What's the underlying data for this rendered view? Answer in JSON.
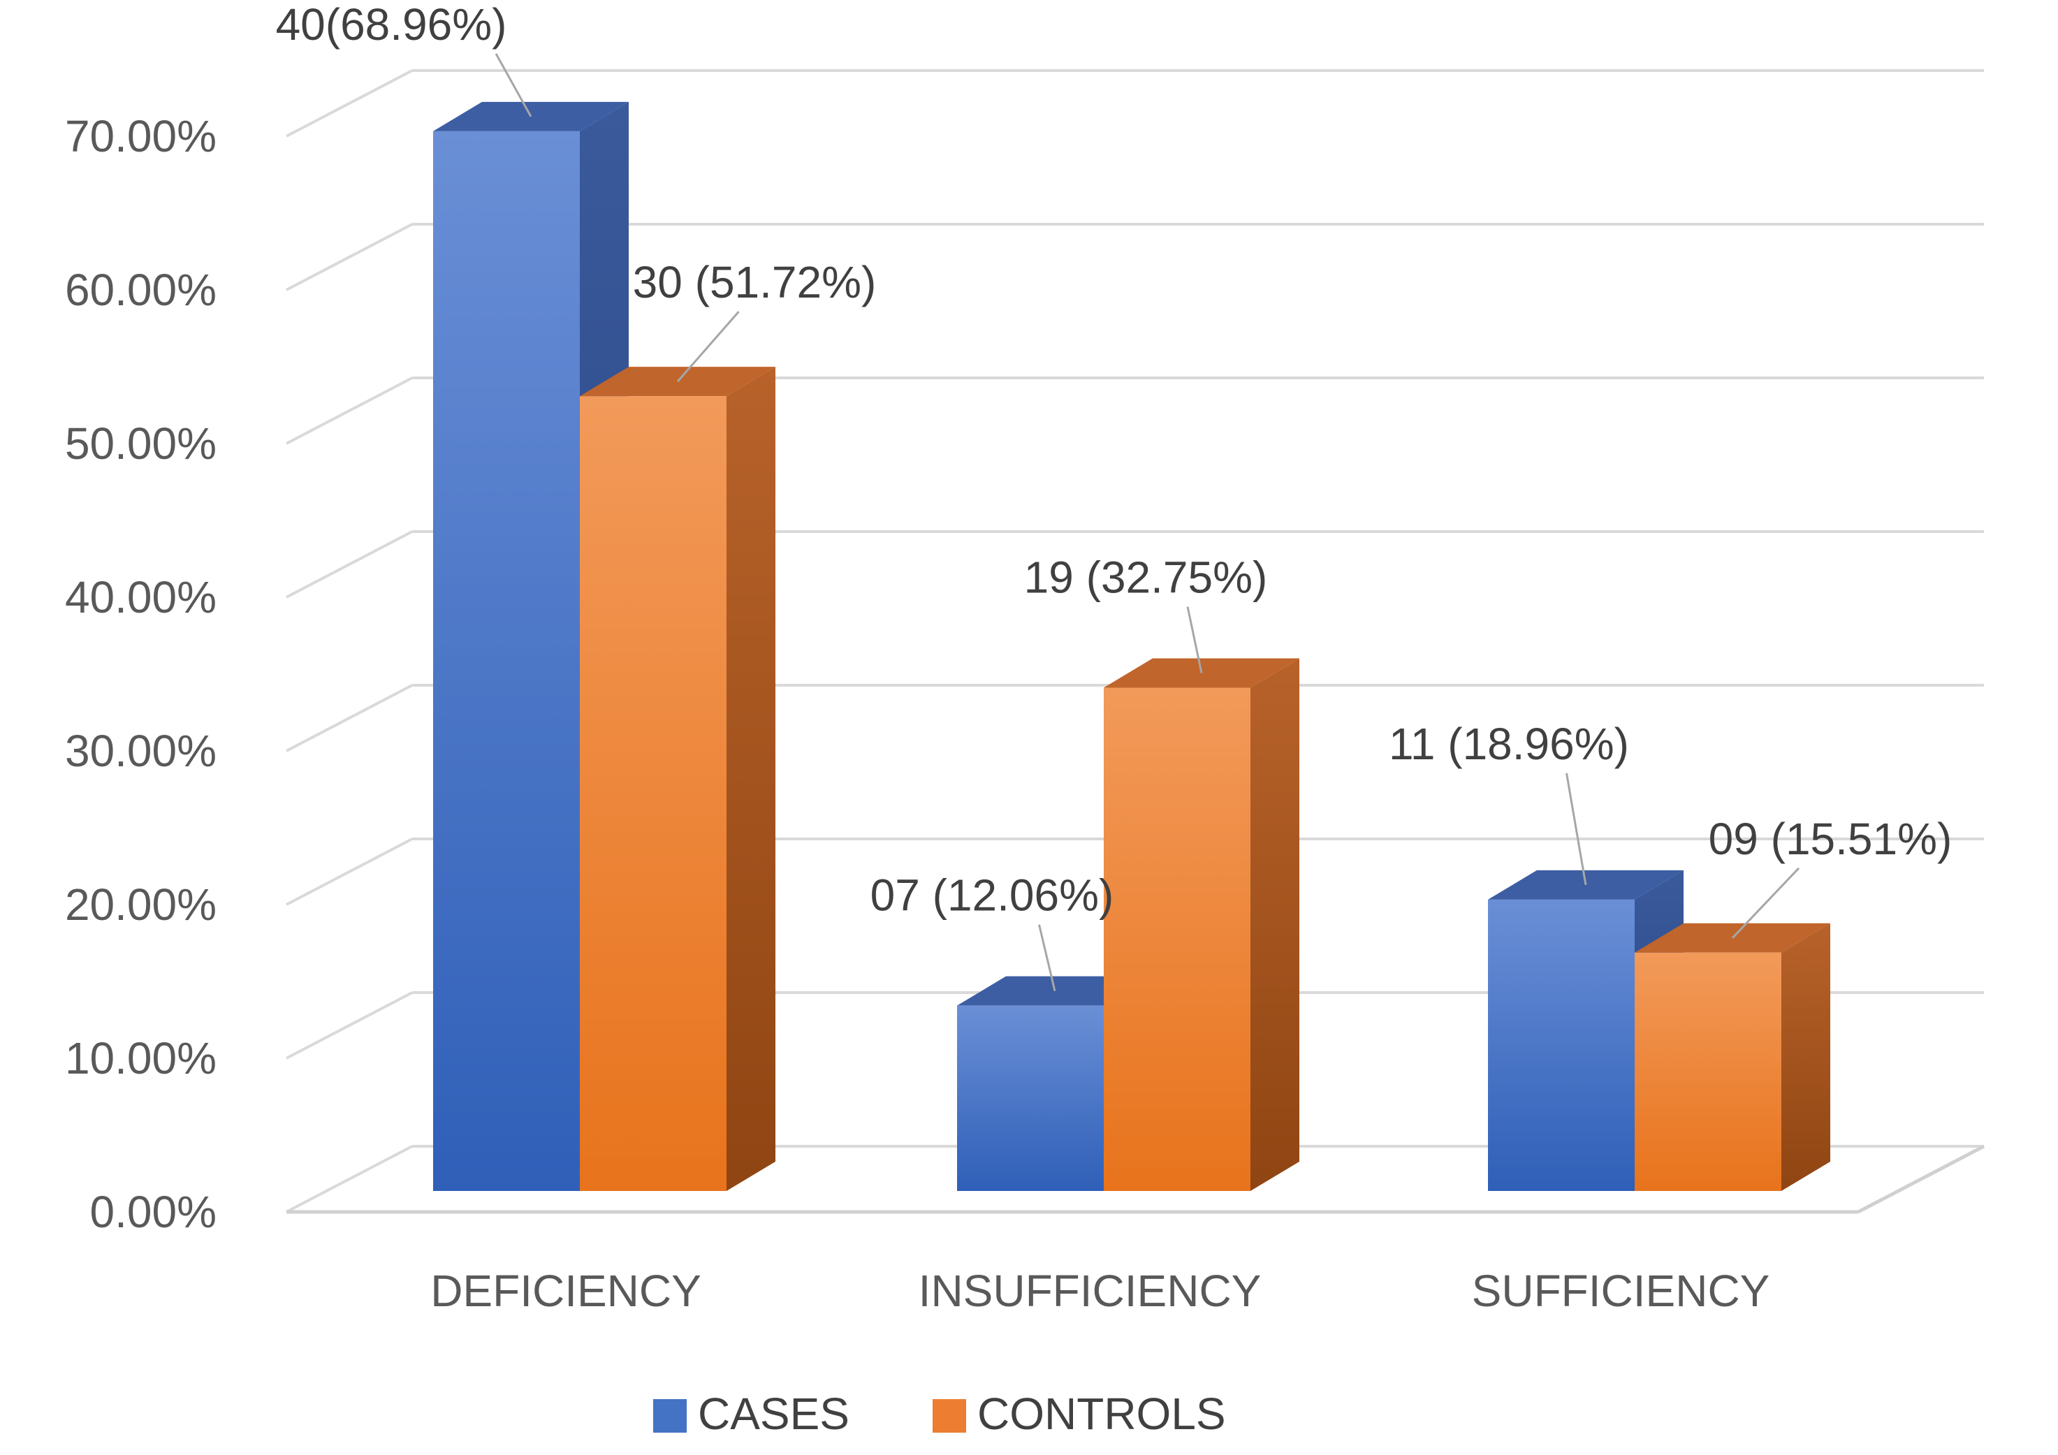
{
  "chart_data": {
    "type": "bar",
    "style": "3d-clustered-column",
    "title": "",
    "xlabel": "",
    "ylabel": "",
    "ylim": [
      0,
      70
    ],
    "yticks": [
      0,
      10,
      20,
      30,
      40,
      50,
      60,
      70
    ],
    "ytick_labels": [
      "0.00%",
      "10.00%",
      "20.00%",
      "30.00%",
      "40.00%",
      "50.00%",
      "60.00%",
      "70.00%"
    ],
    "grid": true,
    "legend_position": "bottom",
    "categories": [
      "DEFICIENCY",
      "INSUFFICIENCY",
      "SUFFICIENCY"
    ],
    "series": [
      {
        "name": "CASES",
        "color": "#4472C4",
        "values": [
          68.96,
          12.06,
          18.96
        ],
        "labels": [
          "40(68.96%)",
          "07 (12.06%)",
          "11 (18.96%)"
        ]
      },
      {
        "name": "CONTROLS",
        "color": "#ED7D31",
        "values": [
          51.72,
          32.75,
          15.51
        ],
        "labels": [
          "30 (51.72%)",
          "19 (32.75%)",
          "09 (15.51%)"
        ]
      }
    ]
  }
}
